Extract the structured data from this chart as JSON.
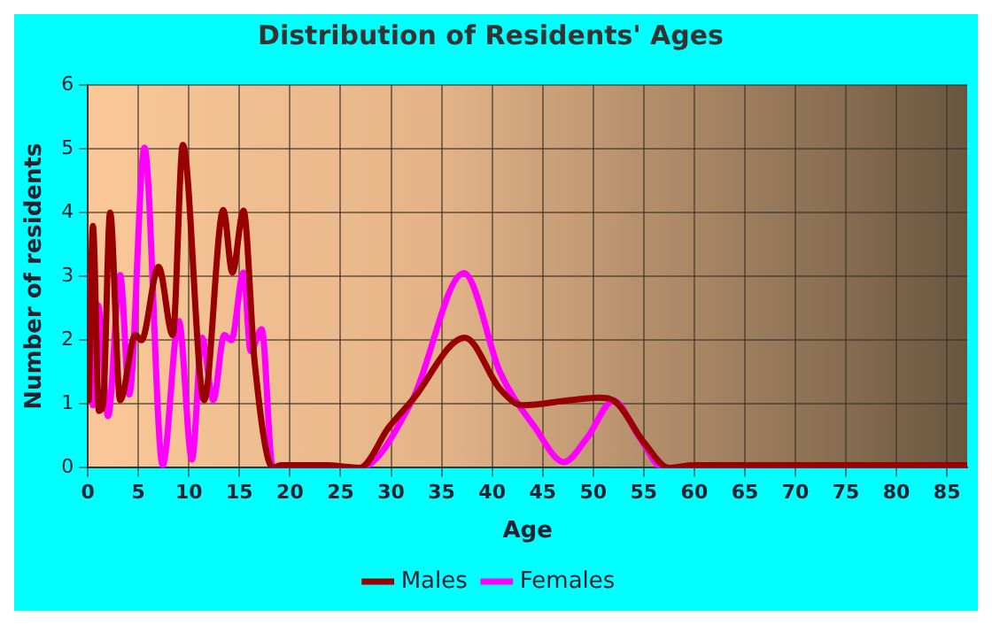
{
  "chart_data": {
    "type": "line",
    "title": "Distribution of Residents' Ages",
    "xlabel": "Age",
    "ylabel": "Number of residents",
    "xlim": [
      0,
      87
    ],
    "xticks": [
      0,
      5,
      10,
      15,
      20,
      25,
      30,
      35,
      40,
      45,
      50,
      55,
      60,
      65,
      70,
      75,
      80,
      85
    ],
    "ylim": [
      0,
      6
    ],
    "yticks": [
      0,
      1,
      2,
      3,
      4,
      5,
      6
    ],
    "grid": true,
    "legend": "bottom",
    "marker": "none",
    "line_style": "solid",
    "series": [
      {
        "name": "Males",
        "color": "#990000",
        "x": [
          0.1,
          0.5,
          1.1,
          1.5,
          2.2,
          3.2,
          4.7,
          5.3,
          7.0,
          8.4,
          9.4,
          11.5,
          13.4,
          14.3,
          15.4,
          16.5,
          18.3,
          19.1,
          23.5,
          26.9,
          29.8,
          32.1,
          37.3,
          40.8,
          43.0,
          47.7,
          50.6,
          52.3,
          55.1,
          57.5,
          60,
          87
        ],
        "values": [
          1.06,
          3.79,
          0.89,
          0.98,
          4.0,
          1.06,
          2.08,
          2.0,
          3.15,
          2.08,
          5.06,
          1.06,
          4.04,
          3.06,
          4.03,
          1.66,
          0,
          0.04,
          0.04,
          0,
          0.64,
          1.06,
          2.04,
          1.23,
          0.98,
          1.06,
          1.1,
          1.02,
          0.38,
          0,
          0.04,
          0.04
        ]
      },
      {
        "name": "Females",
        "color": "#ff00ff",
        "x": [
          0.1,
          0.5,
          1.0,
          2.0,
          3.2,
          4.1,
          5.6,
          7.4,
          9.0,
          10.3,
          11.3,
          12.4,
          13.5,
          14.2,
          15.4,
          16.1,
          17.2,
          18.3,
          26.9,
          32.1,
          37.2,
          40.8,
          44.2,
          47.1,
          49.4,
          52.0,
          54.6,
          56.9,
          87
        ],
        "values": [
          3.02,
          0.98,
          2.55,
          0.81,
          3.02,
          1.15,
          5.02,
          0.04,
          2.3,
          0.13,
          2.04,
          1.06,
          2.08,
          2.0,
          3.06,
          1.83,
          2.17,
          0,
          0,
          1.06,
          3.05,
          1.49,
          0.64,
          0.09,
          0.47,
          1.05,
          0.47,
          0,
          0
        ]
      }
    ]
  }
}
